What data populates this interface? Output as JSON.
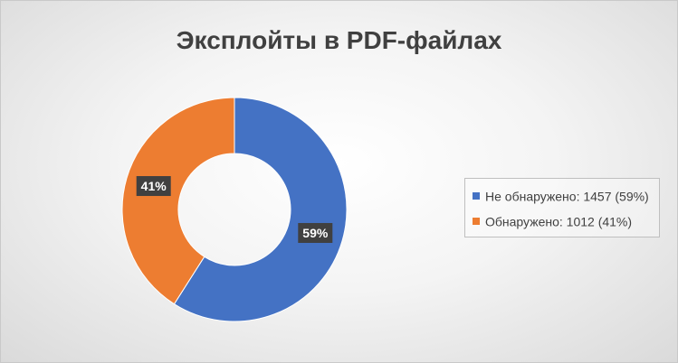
{
  "chart_data": {
    "type": "pie",
    "style": "donut",
    "title": "Эксплойты в PDF-файлах",
    "categories": [
      "Не обнаружено",
      "Обнаружено"
    ],
    "values": [
      1457,
      1012
    ],
    "percent_labels": [
      "59%",
      "41%"
    ],
    "colors": [
      "#4472c4",
      "#ed7d31"
    ],
    "legend": {
      "placement": "right",
      "entries": [
        "Не обнаружено: 1457 (59%)",
        "Обнаружено: 1012 (41%)"
      ]
    }
  }
}
